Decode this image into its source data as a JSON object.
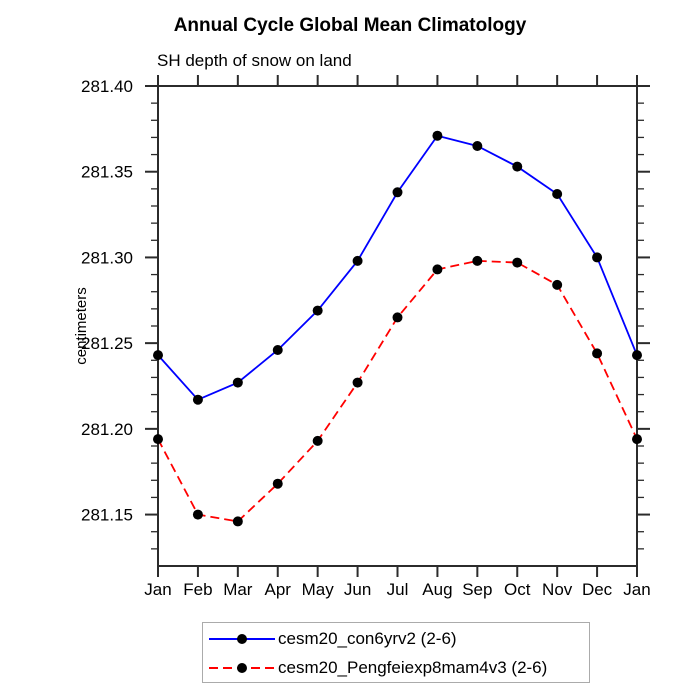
{
  "chart_data": {
    "type": "line",
    "title": "Annual Cycle Global Mean Climatology",
    "subtitle": "SH depth of snow on land",
    "ylabel": "centimeters",
    "x_tick_labels": [
      "Jan",
      "Feb",
      "Mar",
      "Apr",
      "May",
      "Jun",
      "Jul",
      "Aug",
      "Sep",
      "Oct",
      "Nov",
      "Dec",
      "Jan"
    ],
    "ylim": [
      281.12,
      281.4
    ],
    "y_major_ticks": [
      281.15,
      281.2,
      281.25,
      281.3,
      281.35,
      281.4
    ],
    "y_tick_labels": [
      "281.15",
      "281.20",
      "281.25",
      "281.30",
      "281.35",
      "281.40"
    ],
    "y_minor_step": 0.01,
    "grid": false,
    "axis_color": "#2b2b2b",
    "legend_position": "bottom-center",
    "series": [
      {
        "name": "cesm20_con6yrv2 (2-6)",
        "color": "#0000ff",
        "line_style": "solid",
        "marker": "circle",
        "marker_color": "#000000",
        "values": [
          281.243,
          281.217,
          281.227,
          281.246,
          281.269,
          281.298,
          281.338,
          281.371,
          281.365,
          281.353,
          281.337,
          281.3,
          281.243
        ]
      },
      {
        "name": "cesm20_Pengfeiexp8mam4v3 (2-6)",
        "color": "#ff0000",
        "line_style": "dashed",
        "marker": "circle",
        "marker_color": "#000000",
        "values": [
          281.194,
          281.15,
          281.146,
          281.168,
          281.193,
          281.227,
          281.265,
          281.293,
          281.298,
          281.297,
          281.284,
          281.244,
          281.194
        ]
      }
    ]
  }
}
